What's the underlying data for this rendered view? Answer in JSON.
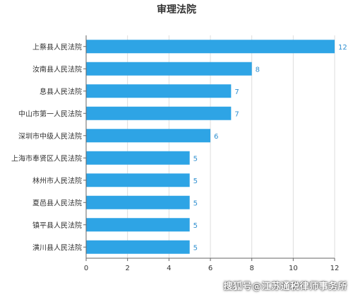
{
  "colors": {
    "bar": "#2ea4e5",
    "label": "#2e8fd0",
    "axis": "#666666",
    "grid": "#dddddd",
    "text": "#333333"
  },
  "watermark": "搜狐号@江苏通税律师事务所",
  "chart_data": {
    "type": "bar",
    "orientation": "horizontal",
    "title": "审理法院",
    "xlabel": "",
    "ylabel": "",
    "xlim": [
      0,
      12
    ],
    "x_ticks": [
      0,
      2,
      4,
      6,
      8,
      10,
      12
    ],
    "grid": true,
    "legend": "none",
    "categories": [
      "上蔡县人民法院",
      "汝南县人民法院",
      "息县人民法院",
      "中山市第一人民法院",
      "深圳市中级人民法院",
      "上海市奉贤区人民法院",
      "林州市人民法院",
      "夏邑县人民法院",
      "镇平县人民法院",
      "潢川县人民法院"
    ],
    "values": [
      12,
      8,
      7,
      7,
      6,
      5,
      5,
      5,
      5,
      5
    ]
  }
}
